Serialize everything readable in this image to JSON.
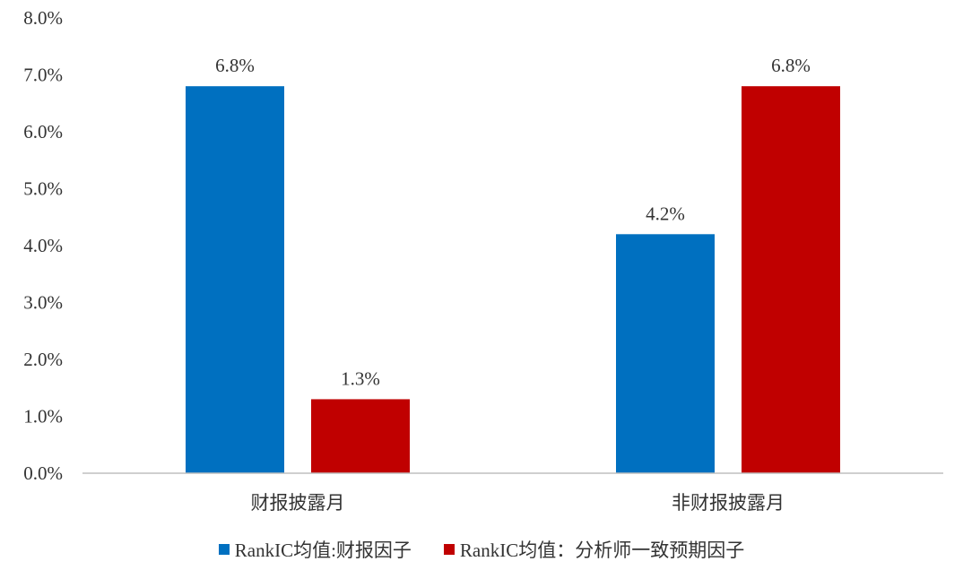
{
  "chart_data": {
    "type": "bar",
    "categories": [
      "财报披露月",
      "非财报披露月"
    ],
    "series": [
      {
        "name": "RankIC均值:财报因子",
        "color": "#0070C0",
        "values": [
          6.8,
          4.2
        ],
        "labels": [
          "6.8%",
          "4.2%"
        ]
      },
      {
        "name": "RankIC均值：分析师一致预期因子",
        "color": "#C00000",
        "values": [
          1.3,
          6.8
        ],
        "labels": [
          "1.3%",
          "6.8%"
        ]
      }
    ],
    "ylim": [
      0,
      8
    ],
    "yticks": [
      "0.0%",
      "1.0%",
      "2.0%",
      "3.0%",
      "4.0%",
      "5.0%",
      "6.0%",
      "7.0%",
      "8.0%"
    ],
    "grid": false,
    "legend_position": "bottom",
    "axis_color": "#BFBFBF"
  }
}
